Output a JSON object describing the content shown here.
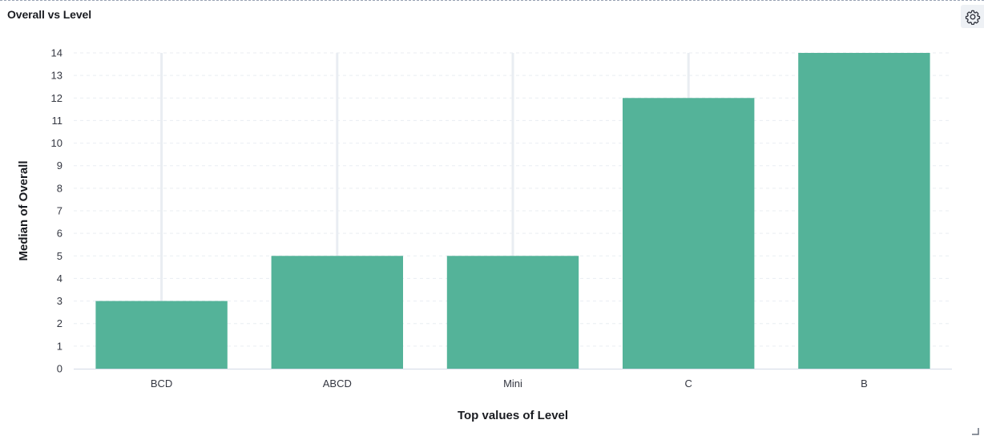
{
  "panel": {
    "title": "Overall vs Level",
    "settings_icon": "gear-icon",
    "resize_icon": "resize-corner-icon"
  },
  "colors": {
    "bar": "#54b399",
    "grid": "#e9edf2",
    "axis": "#d3dae6"
  },
  "chart_data": {
    "type": "bar",
    "title": "Overall vs Level",
    "categories": [
      "BCD",
      "ABCD",
      "Mini",
      "C",
      "B"
    ],
    "values": [
      3,
      5,
      5,
      12,
      14
    ],
    "xlabel": "Top values of Level",
    "ylabel": "Median of Overall",
    "ylim": [
      0,
      14
    ],
    "yticks": [
      0,
      1,
      2,
      3,
      4,
      5,
      6,
      7,
      8,
      9,
      10,
      11,
      12,
      13,
      14
    ],
    "grid": true,
    "legend": "none"
  }
}
